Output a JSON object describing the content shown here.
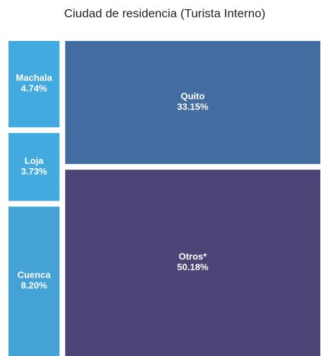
{
  "chart_data": {
    "type": "treemap",
    "title": "Ciudad de residencia (Turista Interno)",
    "categories": [
      "Machala",
      "Loja",
      "Cuenca",
      "Quito",
      "Otros*"
    ],
    "values": [
      4.74,
      3.73,
      8.2,
      33.15,
      50.18
    ],
    "value_labels": [
      "4.74%",
      "3.73%",
      "8.20%",
      "33.15%",
      "50.18%"
    ],
    "colors": [
      "#43aadf",
      "#43aadf",
      "#44a2d4",
      "#436ca0",
      "#4a4477"
    ]
  }
}
